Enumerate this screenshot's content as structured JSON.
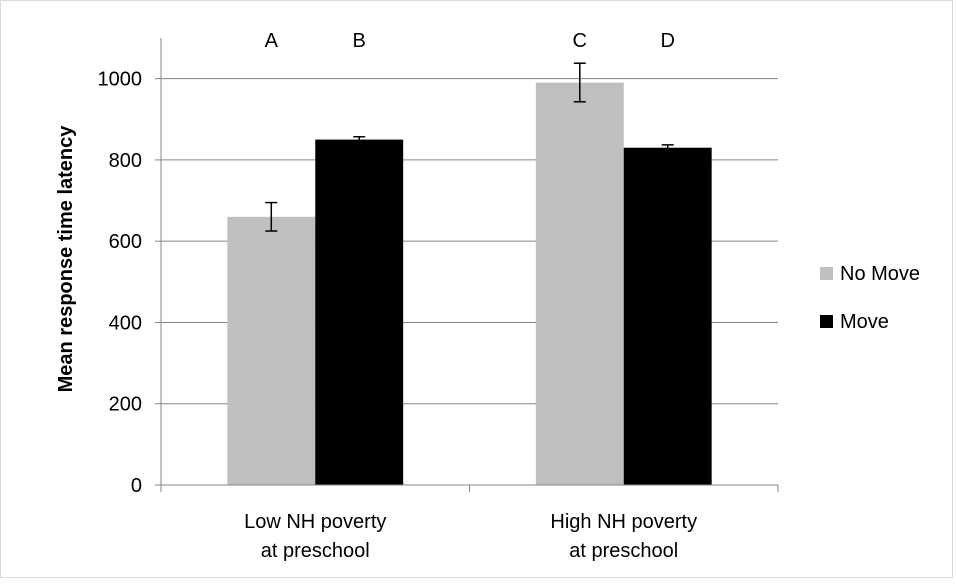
{
  "chart_data": {
    "type": "bar",
    "title": "",
    "xlabel": "",
    "ylabel": "Mean response time latency",
    "ylim": [
      0,
      1100
    ],
    "yticks": [
      0,
      200,
      400,
      600,
      800,
      1000
    ],
    "grid": true,
    "legend_position": "right",
    "categories": [
      [
        "Low NH poverty",
        "at preschool"
      ],
      [
        "High NH poverty",
        "at preschool"
      ]
    ],
    "series": [
      {
        "name": "No Move",
        "color": "#bfbfbf",
        "values": [
          660,
          990
        ],
        "error": [
          [
            625,
            695
          ],
          [
            943,
            1038
          ]
        ]
      },
      {
        "name": "Move",
        "color": "#000000",
        "values": [
          850,
          830
        ],
        "error": [
          [
            843,
            857
          ],
          [
            823,
            837
          ]
        ]
      }
    ],
    "annotations": [
      {
        "text": "A",
        "category": 0,
        "series": 0
      },
      {
        "text": "B",
        "category": 0,
        "series": 1
      },
      {
        "text": "C",
        "category": 1,
        "series": 0
      },
      {
        "text": "D",
        "category": 1,
        "series": 1
      }
    ],
    "colors": {
      "gridline": "#868686",
      "axis": "#868686",
      "errorbar": "#000000"
    }
  }
}
